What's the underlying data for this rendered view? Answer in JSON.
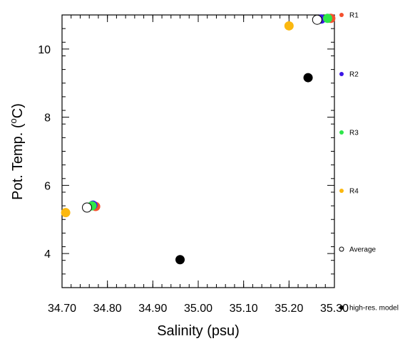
{
  "chart_data": {
    "type": "scatter",
    "title": "",
    "xlabel": "Salinity (psu)",
    "ylabel_main": "Pot. Temp. (",
    "ylabel_sup": "o",
    "ylabel_end": "C)",
    "xlim": [
      34.7,
      35.3
    ],
    "ylim": [
      3.0,
      11.0
    ],
    "x_ticks": [
      {
        "value": 34.7,
        "label": "34.70"
      },
      {
        "value": 34.8,
        "label": "34.80"
      },
      {
        "value": 34.9,
        "label": "34.90"
      },
      {
        "value": 35.0,
        "label": "35.00"
      },
      {
        "value": 35.1,
        "label": "35.10"
      },
      {
        "value": 35.2,
        "label": "35.20"
      },
      {
        "value": 35.3,
        "label": "35.30"
      }
    ],
    "y_ticks": [
      {
        "value": 4,
        "label": "4"
      },
      {
        "value": 6,
        "label": "6"
      },
      {
        "value": 8,
        "label": "8"
      },
      {
        "value": 10,
        "label": "10"
      }
    ],
    "x_minor_step": 0.02,
    "y_minor_step": 0.4,
    "grid": false,
    "legend_placement": "right",
    "series": [
      {
        "name": "R1",
        "color": "#f4502e",
        "filled": true,
        "points": [
          {
            "x": 34.774,
            "y": 5.38
          },
          {
            "x": 35.292,
            "y": 10.9
          }
        ]
      },
      {
        "name": "R2",
        "color": "#3b16e6",
        "filled": true,
        "points": [
          {
            "x": 34.768,
            "y": 5.42
          },
          {
            "x": 35.271,
            "y": 10.88
          }
        ]
      },
      {
        "name": "R3",
        "color": "#2ee64a",
        "filled": true,
        "points": [
          {
            "x": 34.766,
            "y": 5.4
          },
          {
            "x": 35.285,
            "y": 10.9
          }
        ]
      },
      {
        "name": "R4",
        "color": "#fbb80f",
        "filled": true,
        "points": [
          {
            "x": 34.708,
            "y": 5.2
          },
          {
            "x": 35.2,
            "y": 10.68
          }
        ]
      },
      {
        "name": "Average",
        "color": "#000000",
        "filled": false,
        "points": [
          {
            "x": 34.755,
            "y": 5.35
          },
          {
            "x": 35.262,
            "y": 10.86
          }
        ]
      },
      {
        "name": "high-res. model",
        "color": "#000000",
        "filled": true,
        "points": [
          {
            "x": 34.96,
            "y": 3.82
          },
          {
            "x": 35.242,
            "y": 9.16
          }
        ]
      }
    ]
  }
}
